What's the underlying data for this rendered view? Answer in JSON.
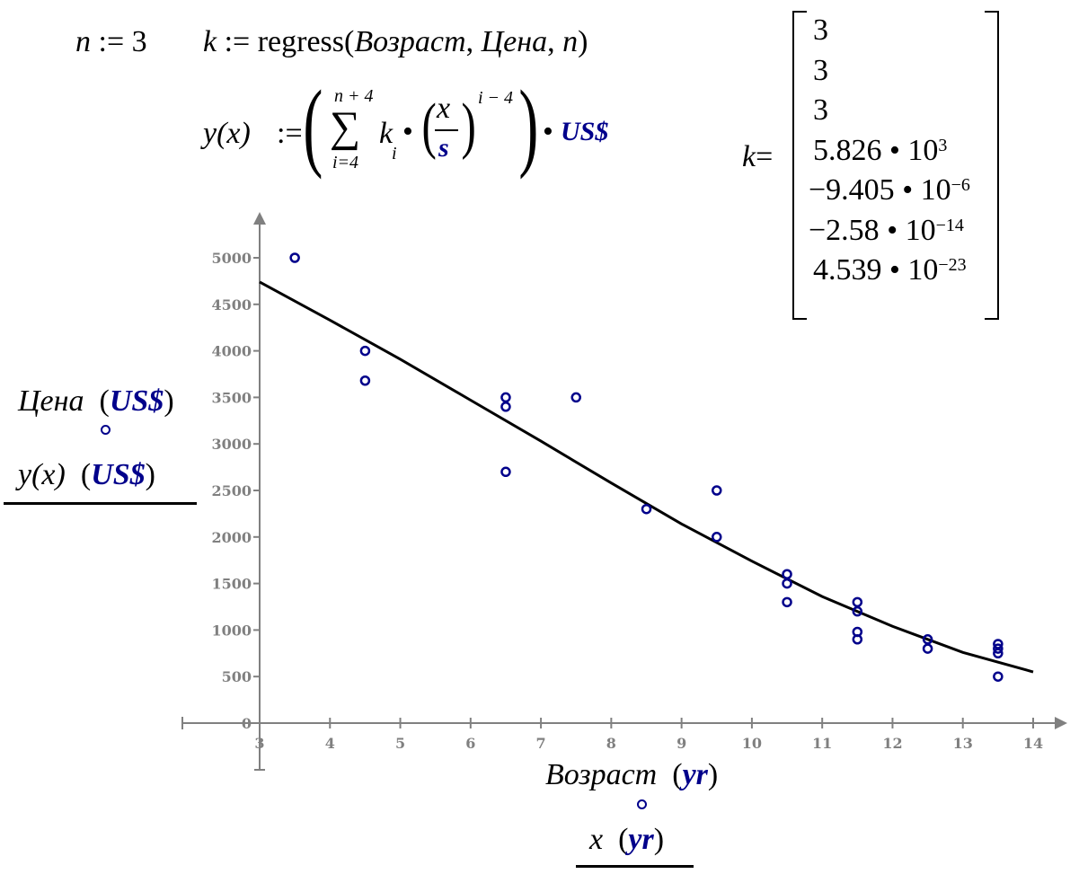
{
  "equations": {
    "n_def": {
      "lhs": "n",
      "op": ":=",
      "rhs": "3"
    },
    "k_def": {
      "lhs": "k",
      "op": ":=",
      "func": "regress",
      "args": [
        "Возраст",
        "Цена",
        "n"
      ]
    },
    "y_def": {
      "lhs": "y(x)",
      "op": ":=",
      "sum_upper": "n + 4",
      "sum_lower": "i=4",
      "coef": "k",
      "coef_index": "i",
      "frac_num": "x",
      "frac_den": "s",
      "exponent": "i − 4",
      "unit": "US$"
    }
  },
  "k_result": {
    "lhs": "k",
    "op": "=",
    "values": [
      {
        "mantissa": "3",
        "exp": ""
      },
      {
        "mantissa": "3",
        "exp": ""
      },
      {
        "mantissa": "3",
        "exp": ""
      },
      {
        "mantissa": "5.826",
        "exp": "3"
      },
      {
        "mantissa": "−9.405",
        "exp": "−6"
      },
      {
        "mantissa": "−2.58",
        "exp": "−14"
      },
      {
        "mantissa": "4.539",
        "exp": "−23"
      }
    ]
  },
  "axis_labels": {
    "y_series1": "Цена",
    "y_series2": "y(x)",
    "y_unit": "US$",
    "x_series1": "Возраст",
    "x_series2": "x",
    "x_unit": "yr"
  },
  "colors": {
    "marker": "#00008b",
    "unit_text": "#00008b",
    "axis": "#808080",
    "curve": "#000000"
  },
  "chart_data": {
    "type": "scatter",
    "title": "",
    "xlabel": "Возраст (yr) / x (yr)",
    "ylabel": "Цена (US$) / y(x) (US$)",
    "xlim": [
      3,
      14
    ],
    "ylim": [
      0,
      5000
    ],
    "x_ticks": [
      "3",
      "4",
      "5",
      "6",
      "7",
      "8",
      "9",
      "10",
      "11",
      "12",
      "13",
      "14"
    ],
    "y_ticks": [
      "0",
      "500",
      "1000",
      "1500",
      "2000",
      "2500",
      "3000",
      "3500",
      "4000",
      "4500",
      "5000"
    ],
    "grid": false,
    "series": [
      {
        "name": "Цена",
        "type": "scatter",
        "marker": "open-circle",
        "points": [
          [
            3.5,
            5000
          ],
          [
            4.5,
            4000
          ],
          [
            4.5,
            3680
          ],
          [
            6.5,
            3500
          ],
          [
            6.5,
            3400
          ],
          [
            6.5,
            2700
          ],
          [
            7.5,
            3500
          ],
          [
            8.5,
            2300
          ],
          [
            9.5,
            2500
          ],
          [
            9.5,
            2000
          ],
          [
            10.5,
            1600
          ],
          [
            10.5,
            1500
          ],
          [
            10.5,
            1300
          ],
          [
            11.5,
            1300
          ],
          [
            11.5,
            1200
          ],
          [
            11.5,
            980
          ],
          [
            11.5,
            900
          ],
          [
            12.5,
            900
          ],
          [
            12.5,
            800
          ],
          [
            13.5,
            850
          ],
          [
            13.5,
            800
          ],
          [
            13.5,
            750
          ],
          [
            13.5,
            500
          ]
        ]
      },
      {
        "name": "y(x)",
        "type": "line",
        "points": [
          [
            3,
            4740
          ],
          [
            4,
            4330
          ],
          [
            5,
            3910
          ],
          [
            6,
            3470
          ],
          [
            7,
            3030
          ],
          [
            8,
            2580
          ],
          [
            9,
            2140
          ],
          [
            10,
            1740
          ],
          [
            11,
            1360
          ],
          [
            12,
            1040
          ],
          [
            13,
            760
          ],
          [
            14,
            550
          ]
        ]
      }
    ]
  }
}
